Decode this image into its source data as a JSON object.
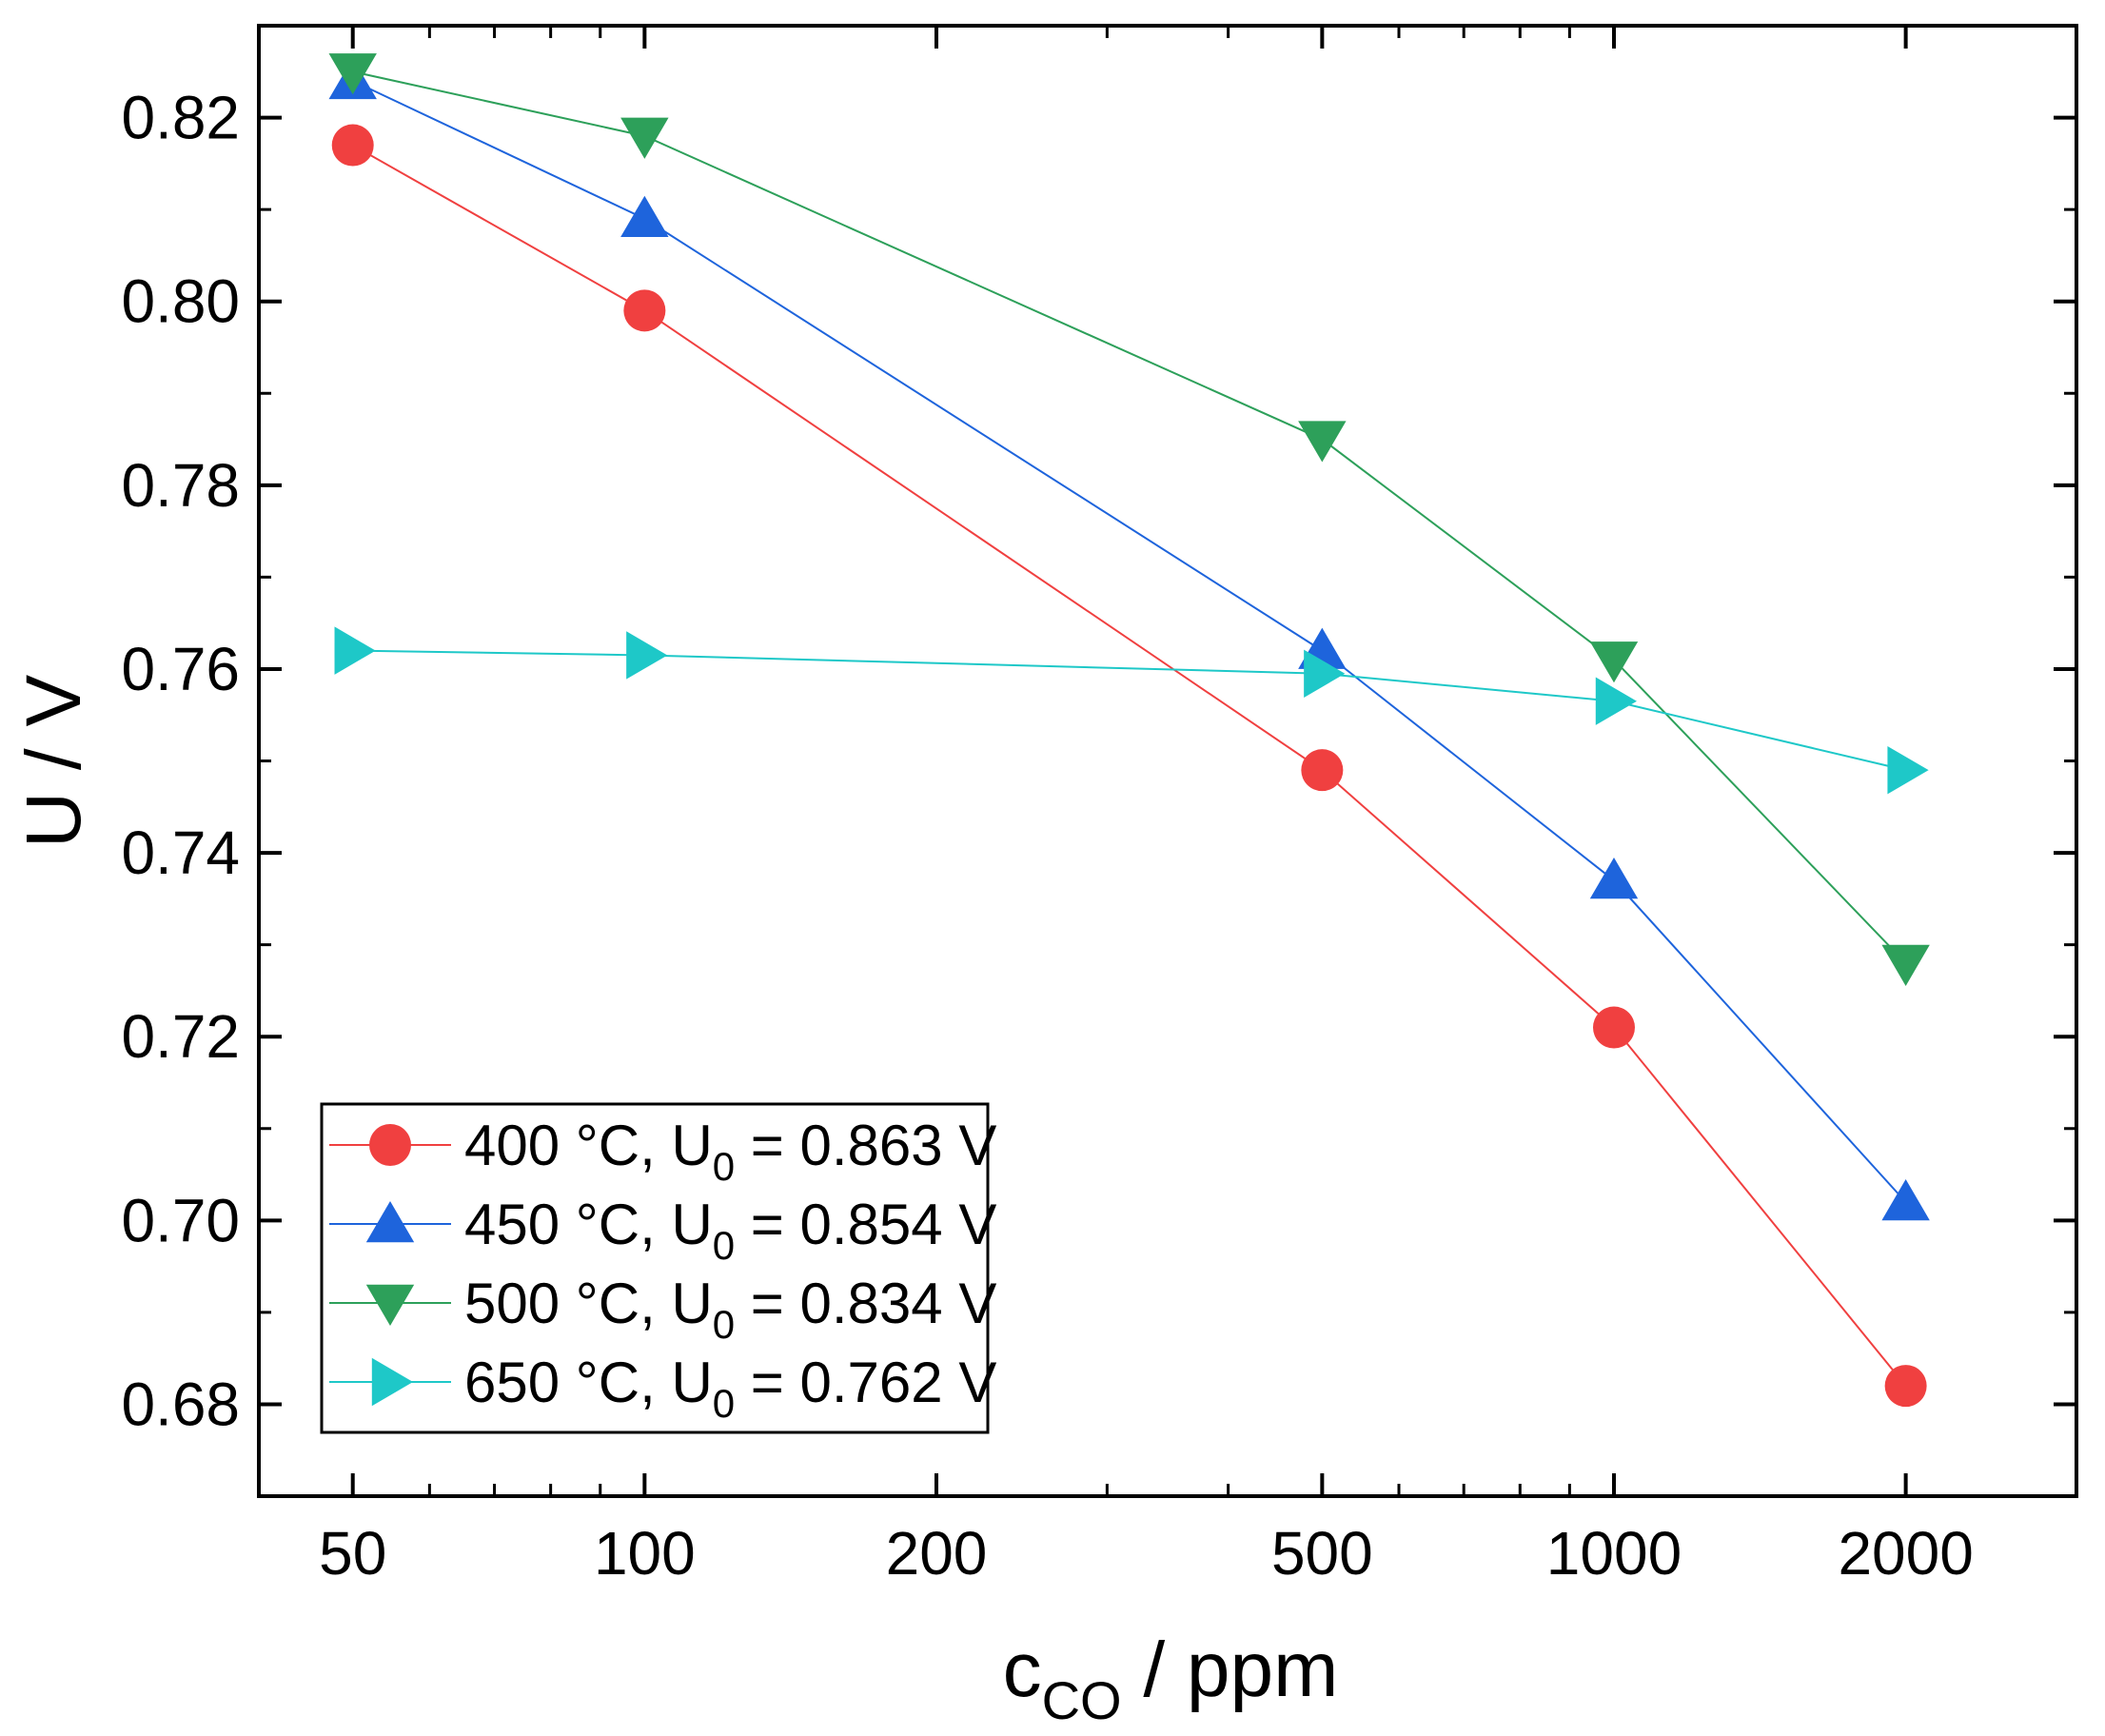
{
  "chart_data": {
    "type": "line",
    "xscale": "log",
    "xlim": [
      40,
      3000
    ],
    "ylim": [
      0.67,
      0.83
    ],
    "x": [
      50,
      100,
      500,
      1000,
      2000
    ],
    "x_ticks": [
      50,
      100,
      200,
      500,
      1000,
      2000
    ],
    "x_tick_labels": [
      "50",
      "100",
      "200",
      "500",
      "1000",
      "2000"
    ],
    "y_ticks": [
      0.68,
      0.7,
      0.72,
      0.74,
      0.76,
      0.78,
      0.8,
      0.82
    ],
    "y_tick_labels": [
      "0.68",
      "0.70",
      "0.72",
      "0.74",
      "0.76",
      "0.78",
      "0.80",
      "0.82"
    ],
    "xlabel": {
      "main": "c",
      "sub": "CO",
      "rest": " / ppm"
    },
    "ylabel": "U / V",
    "legend_position": "bottom-left",
    "series": [
      {
        "name": {
          "pre": "400 °C, U",
          "sub": "0",
          "post": " = 0.863 V"
        },
        "color": "#f04040",
        "marker": "circle",
        "values": [
          0.817,
          0.799,
          0.749,
          0.721,
          0.682
        ]
      },
      {
        "name": {
          "pre": "450 °C, U",
          "sub": "0",
          "post": " = 0.854 V"
        },
        "color": "#1e64dc",
        "marker": "triangle-up",
        "values": [
          0.824,
          0.809,
          0.762,
          0.737,
          0.702
        ]
      },
      {
        "name": {
          "pre": "500 °C, U",
          "sub": "0",
          "post": " = 0.834 V"
        },
        "color": "#2da05a",
        "marker": "triangle-down",
        "values": [
          0.825,
          0.818,
          0.785,
          0.761,
          0.728
        ]
      },
      {
        "name": {
          "pre": "650 °C, U",
          "sub": "0",
          "post": " = 0.762 V"
        },
        "color": "#1ec8c8",
        "marker": "triangle-right",
        "values": [
          0.762,
          0.7615,
          0.7595,
          0.7565,
          0.749
        ]
      }
    ]
  }
}
